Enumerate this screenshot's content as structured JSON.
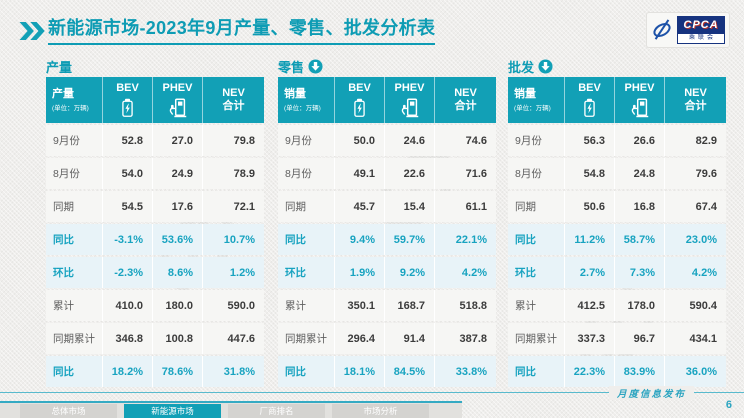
{
  "header": {
    "title_prefix": "新能源市场",
    "title_rest": "-2023年9月产量、零售、批发分析表"
  },
  "logo": {
    "name": "CPCA",
    "subtitle": "乘联会"
  },
  "table_common": {
    "unit_note": "(单位：万辆)",
    "col_bev": "BEV",
    "col_phev": "PHEV",
    "col_nev_line1": "NEV",
    "col_nev_line2": "合计"
  },
  "tables": [
    {
      "section_title": "产量",
      "header_label": "产量",
      "rows": [
        {
          "label": "9月份",
          "values": [
            "52.8",
            "27.0",
            "79.8"
          ],
          "highlight": false
        },
        {
          "label": "8月份",
          "values": [
            "54.0",
            "24.9",
            "78.9"
          ],
          "highlight": false
        },
        {
          "label": "同期",
          "values": [
            "54.5",
            "17.6",
            "72.1"
          ],
          "highlight": false
        },
        {
          "label": "同比",
          "values": [
            "-3.1%",
            "53.6%",
            "10.7%"
          ],
          "highlight": true
        },
        {
          "label": "环比",
          "values": [
            "-2.3%",
            "8.6%",
            "1.2%"
          ],
          "highlight": true
        },
        {
          "label": "累计",
          "values": [
            "410.0",
            "180.0",
            "590.0"
          ],
          "highlight": false
        },
        {
          "label": "同期累计",
          "values": [
            "346.8",
            "100.8",
            "447.6"
          ],
          "highlight": false
        },
        {
          "label": "同比",
          "values": [
            "18.2%",
            "78.6%",
            "31.8%"
          ],
          "highlight": true
        }
      ]
    },
    {
      "section_title": "零售",
      "header_label": "销量",
      "rows": [
        {
          "label": "9月份",
          "values": [
            "50.0",
            "24.6",
            "74.6"
          ],
          "highlight": false
        },
        {
          "label": "8月份",
          "values": [
            "49.1",
            "22.6",
            "71.6"
          ],
          "highlight": false
        },
        {
          "label": "同期",
          "values": [
            "45.7",
            "15.4",
            "61.1"
          ],
          "highlight": false
        },
        {
          "label": "同比",
          "values": [
            "9.4%",
            "59.7%",
            "22.1%"
          ],
          "highlight": true
        },
        {
          "label": "环比",
          "values": [
            "1.9%",
            "9.2%",
            "4.2%"
          ],
          "highlight": true
        },
        {
          "label": "累计",
          "values": [
            "350.1",
            "168.7",
            "518.8"
          ],
          "highlight": false
        },
        {
          "label": "同期累计",
          "values": [
            "296.4",
            "91.4",
            "387.8"
          ],
          "highlight": false
        },
        {
          "label": "同比",
          "values": [
            "18.1%",
            "84.5%",
            "33.8%"
          ],
          "highlight": true
        }
      ]
    },
    {
      "section_title": "批发",
      "header_label": "销量",
      "rows": [
        {
          "label": "9月份",
          "values": [
            "56.3",
            "26.6",
            "82.9"
          ],
          "highlight": false
        },
        {
          "label": "8月份",
          "values": [
            "54.8",
            "24.8",
            "79.6"
          ],
          "highlight": false
        },
        {
          "label": "同期",
          "values": [
            "50.6",
            "16.8",
            "67.4"
          ],
          "highlight": false
        },
        {
          "label": "同比",
          "values": [
            "11.2%",
            "58.7%",
            "23.0%"
          ],
          "highlight": true
        },
        {
          "label": "环比",
          "values": [
            "2.7%",
            "7.3%",
            "4.2%"
          ],
          "highlight": true
        },
        {
          "label": "累计",
          "values": [
            "412.5",
            "178.0",
            "590.4"
          ],
          "highlight": false
        },
        {
          "label": "同期累计",
          "values": [
            "337.3",
            "96.7",
            "434.1"
          ],
          "highlight": false
        },
        {
          "label": "同比",
          "values": [
            "22.3%",
            "83.9%",
            "36.0%"
          ],
          "highlight": true
        }
      ]
    }
  ],
  "footer": {
    "banner": "月度信息发布",
    "page_number": "6",
    "tabs": [
      {
        "label": "总体市场",
        "active": false
      },
      {
        "label": "新能源市场",
        "active": true
      },
      {
        "label": "厂商排名",
        "active": false
      },
      {
        "label": "市场分析",
        "active": false
      }
    ]
  },
  "colors": {
    "accent_teal": "#12a0b6",
    "title_teal": "#0e9cb4",
    "highlight_row_bg": "#e8f3f8",
    "highlight_text": "#18a3c0",
    "logo_blue": "#16337f",
    "slide_bg": "#efeeec"
  }
}
